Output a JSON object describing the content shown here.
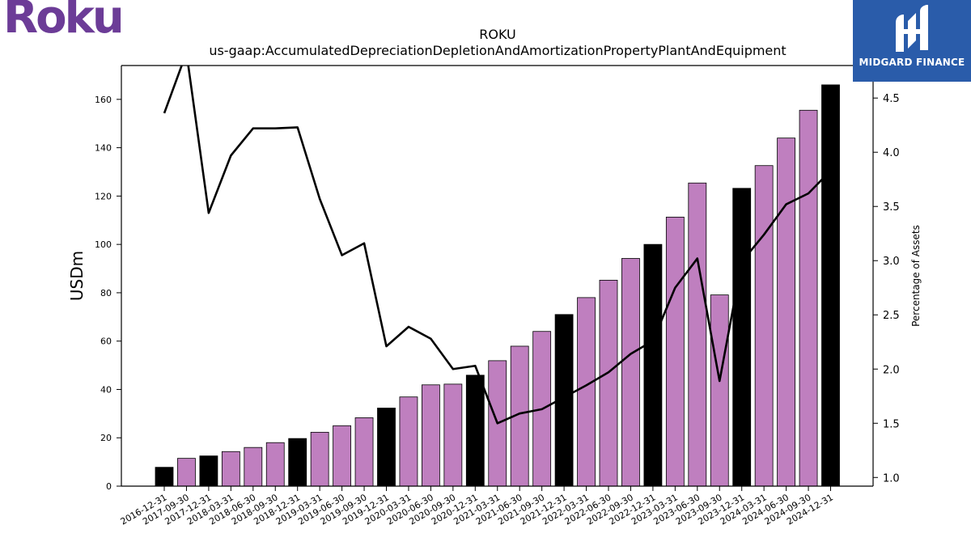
{
  "branding": {
    "roku_logo_text": "Roku",
    "roku_color": "#6c3c97",
    "midgard_name": "MIDGARD FINANCE",
    "midgard_bg": "#2a5caa"
  },
  "colors": {
    "bar_highlight": "#000000",
    "bar_regular": "#bf7fbf",
    "line": "#000000"
  },
  "chart_data": {
    "type": "bar",
    "title": "ROKU",
    "subtitle": "us-gaap:AccumulatedDepreciationDepletionAndAmortizationPropertyPlantAndEquipment",
    "ylabel": "USDm",
    "y2label": "Percentage of Assets",
    "ylim": [
      0,
      174
    ],
    "y2lim": [
      0.92,
      4.8
    ],
    "yticks": [
      0,
      20,
      40,
      60,
      80,
      100,
      120,
      140,
      160
    ],
    "y2ticks": [
      "1.0",
      "1.5",
      "2.0",
      "2.5",
      "3.0",
      "3.5",
      "4.0",
      "4.5"
    ],
    "categories": [
      "2016-12-31",
      "2017-09-30",
      "2017-12-31",
      "2018-03-31",
      "2018-06-30",
      "2018-09-30",
      "2018-12-31",
      "2019-03-31",
      "2019-06-30",
      "2019-09-30",
      "2019-12-31",
      "2020-03-31",
      "2020-06-30",
      "2020-09-30",
      "2020-12-31",
      "2021-03-31",
      "2021-06-30",
      "2021-09-30",
      "2021-12-31",
      "2022-03-31",
      "2022-06-30",
      "2022-09-30",
      "2022-12-31",
      "2023-03-31",
      "2023-06-30",
      "2023-09-30",
      "2023-12-31",
      "2024-03-31",
      "2024-06-30",
      "2024-09-30",
      "2024-12-31"
    ],
    "series": [
      {
        "values": [
          7.8,
          11.5,
          12.5,
          14.3,
          16.0,
          18.0,
          19.7,
          22.3,
          25.0,
          28.3,
          32.3,
          36.9,
          41.9,
          42.2,
          45.9,
          51.9,
          57.9,
          64.0,
          71.0,
          78.0,
          85.2,
          94.2,
          100.0,
          111.3,
          125.4,
          79.1,
          123.2,
          132.6,
          144.0,
          155.5,
          166.0
        ],
        "highlight": [
          true,
          false,
          true,
          false,
          false,
          false,
          true,
          false,
          false,
          false,
          true,
          false,
          false,
          false,
          true,
          false,
          false,
          false,
          true,
          false,
          false,
          false,
          true,
          false,
          false,
          false,
          true,
          false,
          false,
          false,
          true
        ]
      },
      {
        "axis": "right",
        "values": [
          4.36,
          4.92,
          3.44,
          3.97,
          4.22,
          4.22,
          4.23,
          3.57,
          3.05,
          3.16,
          2.21,
          2.39,
          2.28,
          2.0,
          2.03,
          1.5,
          1.59,
          1.63,
          1.74,
          1.85,
          1.97,
          2.14,
          2.26,
          2.75,
          3.02,
          1.89,
          2.99,
          3.24,
          3.52,
          3.62,
          3.83
        ]
      }
    ],
    "grid": false,
    "legend": "none"
  }
}
